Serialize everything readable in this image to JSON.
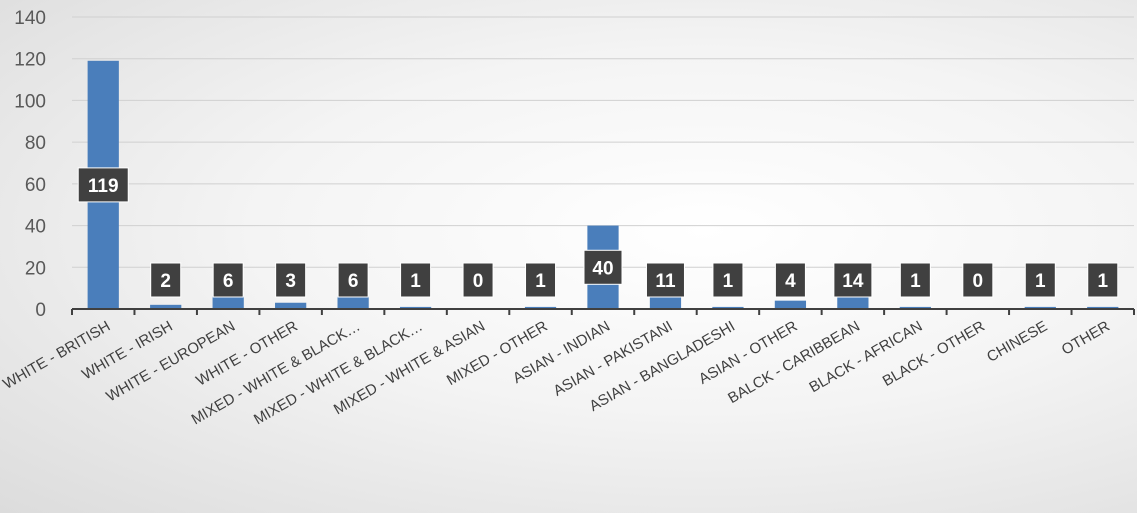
{
  "chart_data": {
    "type": "bar",
    "categories": [
      "WHITE - BRITISH",
      "WHITE - IRISH",
      "WHITE - EUROPEAN",
      "WHITE - OTHER",
      "MIXED - WHITE & BLACK…",
      "MIXED - WHITE & BLACK…",
      "MIXED - WHITE & ASIAN",
      "MIXED - OTHER",
      "ASIAN - INDIAN",
      "ASIAN - PAKISTANI",
      "ASIAN - BANGLADESHI",
      "ASIAN - OTHER",
      "BALCK - CARIBBEAN",
      "BLACK - AFRICAN",
      "BLACK - OTHER",
      "CHINESE",
      "OTHER"
    ],
    "values": [
      119,
      2,
      6,
      3,
      6,
      1,
      0,
      1,
      40,
      11,
      1,
      4,
      14,
      1,
      0,
      1,
      1
    ],
    "data_labels": [
      "119",
      "2",
      "6",
      "3",
      "6",
      "1",
      "0",
      "1",
      "40",
      "11",
      "1",
      "4",
      "14",
      "1",
      "0",
      "1",
      "1"
    ],
    "title": "",
    "xlabel": "",
    "ylabel": "",
    "ylim": [
      0,
      140
    ],
    "yticks": [
      "0",
      "20",
      "40",
      "60",
      "80",
      "100",
      "120",
      "140"
    ],
    "grid": true,
    "legend": "none",
    "colors": {
      "bar": "#4a7ebb",
      "label_box": "#404040",
      "label_text": "#ffffff"
    }
  }
}
